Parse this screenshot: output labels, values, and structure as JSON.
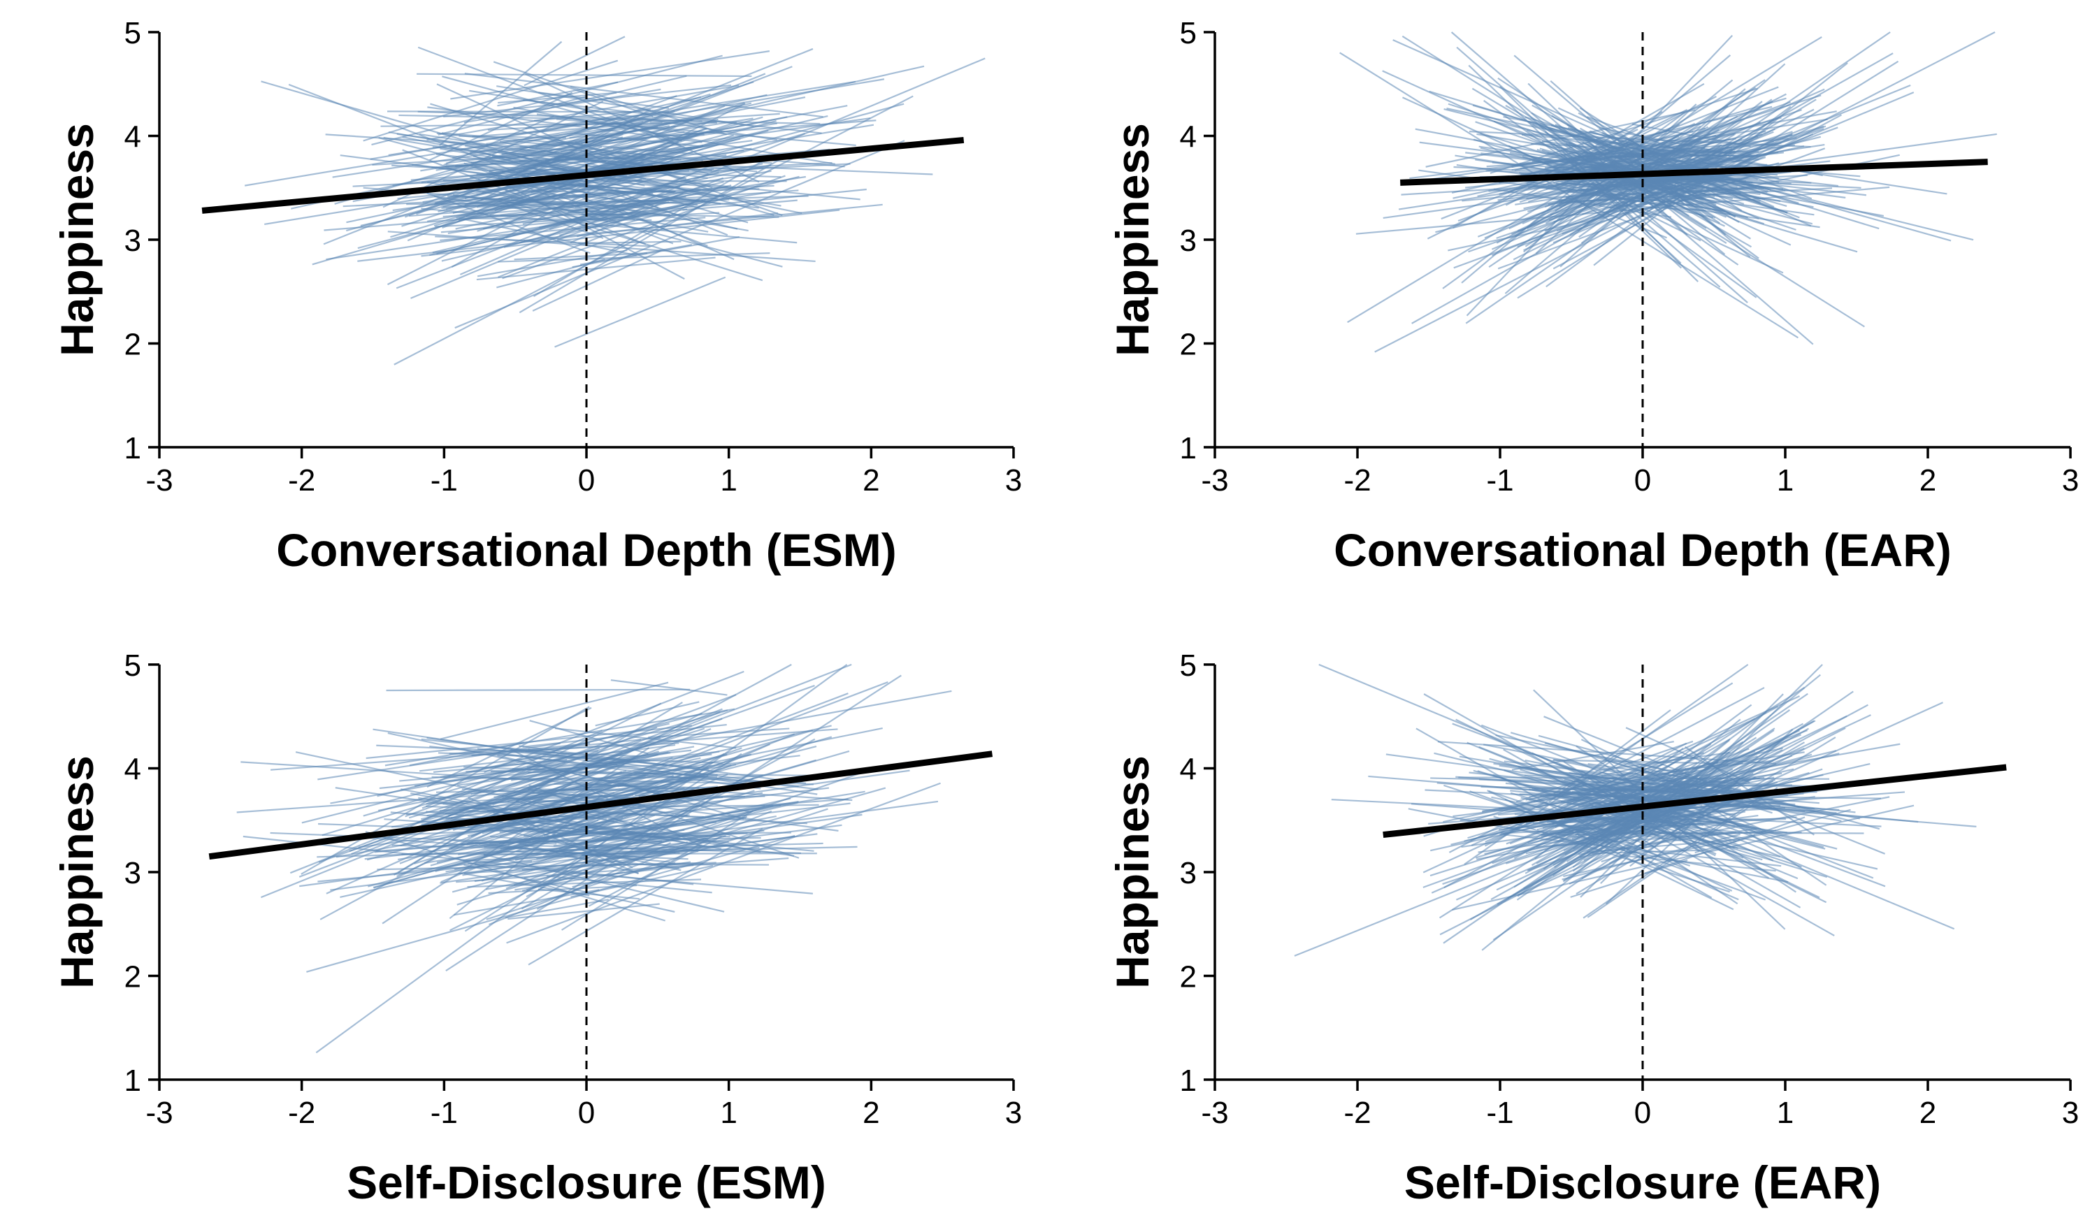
{
  "chart_data": [
    {
      "type": "line",
      "xlabel": "Conversational Depth (ESM)",
      "ylabel": "Happiness",
      "xlim": [
        -3,
        3
      ],
      "ylim": [
        1,
        5
      ],
      "xticks": [
        "-3",
        "-2",
        "-1",
        "0",
        "1",
        "2",
        "3"
      ],
      "yticks": [
        "1",
        "2",
        "3",
        "4",
        "5"
      ],
      "reference_line": {
        "x": 0,
        "style": "dashed",
        "color": "#000000"
      },
      "individual_lines": {
        "count": 280,
        "color": "#5b87b5",
        "x_spread": 1.1,
        "spread_sd": 0.6,
        "center_sd": 0.38,
        "slope_mean": 0.13,
        "slope_sd": 0.3,
        "seed": 11
      },
      "series": [
        {
          "x": [
            -2.7,
            2.65
          ],
          "y": [
            3.28,
            3.96
          ],
          "color": "#000000"
        }
      ]
    },
    {
      "type": "line",
      "xlabel": "Conversational Depth (EAR)",
      "ylabel": "Happiness",
      "xlim": [
        -3,
        3
      ],
      "ylim": [
        1,
        5
      ],
      "xticks": [
        "-3",
        "-2",
        "-1",
        "0",
        "1",
        "2",
        "3"
      ],
      "yticks": [
        "1",
        "2",
        "3",
        "4",
        "5"
      ],
      "reference_line": {
        "x": 0,
        "style": "dashed",
        "color": "#000000"
      },
      "individual_lines": {
        "count": 280,
        "color": "#5b87b5",
        "x_spread": 0.75,
        "spread_sd": 0.55,
        "center_sd": 0.15,
        "slope_mean": 0.05,
        "slope_sd": 0.55,
        "seed": 23
      },
      "series": [
        {
          "x": [
            -1.7,
            2.42
          ],
          "y": [
            3.55,
            3.75
          ],
          "color": "#000000"
        }
      ]
    },
    {
      "type": "line",
      "xlabel": "Self-Disclosure (ESM)",
      "ylabel": "Happiness",
      "xlim": [
        -3,
        3
      ],
      "ylim": [
        1,
        5
      ],
      "xticks": [
        "-3",
        "-2",
        "-1",
        "0",
        "1",
        "2",
        "3"
      ],
      "yticks": [
        "1",
        "2",
        "3",
        "4",
        "5"
      ],
      "reference_line": {
        "x": 0,
        "style": "dashed",
        "color": "#000000"
      },
      "individual_lines": {
        "count": 280,
        "color": "#5b87b5",
        "x_spread": 1.2,
        "spread_sd": 0.65,
        "center_sd": 0.4,
        "slope_mean": 0.18,
        "slope_sd": 0.3,
        "seed": 37
      },
      "series": [
        {
          "x": [
            -2.65,
            2.85
          ],
          "y": [
            3.15,
            4.14
          ],
          "color": "#000000"
        }
      ]
    },
    {
      "type": "line",
      "xlabel": "Self-Disclosure (EAR)",
      "ylabel": "Happiness",
      "xlim": [
        -3,
        3
      ],
      "ylim": [
        1,
        5
      ],
      "xticks": [
        "-3",
        "-2",
        "-1",
        "0",
        "1",
        "2",
        "3"
      ],
      "yticks": [
        "1",
        "2",
        "3",
        "4",
        "5"
      ],
      "reference_line": {
        "x": 0,
        "style": "dashed",
        "color": "#000000"
      },
      "individual_lines": {
        "count": 280,
        "color": "#5b87b5",
        "x_spread": 0.8,
        "spread_sd": 0.55,
        "center_sd": 0.22,
        "slope_mean": 0.15,
        "slope_sd": 0.5,
        "seed": 53
      },
      "series": [
        {
          "x": [
            -1.82,
            2.55
          ],
          "y": [
            3.36,
            4.01
          ],
          "color": "#000000"
        }
      ]
    }
  ]
}
